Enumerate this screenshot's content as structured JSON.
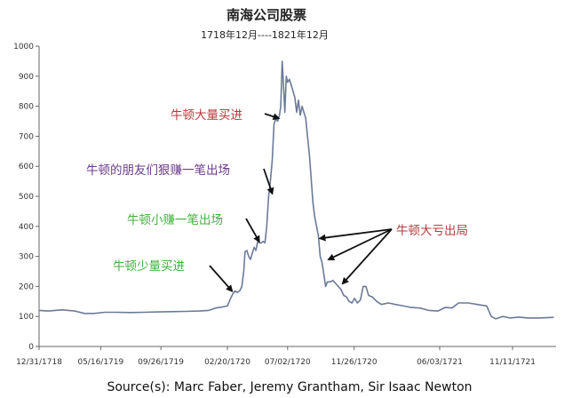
{
  "chart_data": {
    "type": "line",
    "title": "南海公司股票",
    "subtitle": "1718年12月----1821年12月",
    "ylim": [
      0,
      1000
    ],
    "yticks": [
      0,
      100,
      200,
      300,
      400,
      500,
      600,
      700,
      800,
      900,
      1000
    ],
    "xlim": [
      "1718-12-31",
      "1722-02-15"
    ],
    "xticks": [
      {
        "date": "1718-12-31",
        "label": "12/31/1718"
      },
      {
        "date": "1719-05-16",
        "label": "05/16/1719"
      },
      {
        "date": "1719-09-26",
        "label": "09/26/1719"
      },
      {
        "date": "1720-02-20",
        "label": "02/20/1720"
      },
      {
        "date": "1720-07-02",
        "label": "07/02/1720"
      },
      {
        "date": "1720-11-26",
        "label": "11/26/1720"
      },
      {
        "date": "1721-06-03",
        "label": "06/03/1721"
      },
      {
        "date": "1721-11-11",
        "label": "11/11/1721"
      }
    ],
    "grid": false,
    "line_color": "#6b7a99",
    "series": [
      {
        "points": [
          [
            "1718-12-31",
            120
          ],
          [
            "1719-01-20",
            118
          ],
          [
            "1719-02-20",
            122
          ],
          [
            "1719-03-20",
            118
          ],
          [
            "1719-04-10",
            110
          ],
          [
            "1719-05-01",
            110
          ],
          [
            "1719-05-25",
            114
          ],
          [
            "1719-06-20",
            114
          ],
          [
            "1719-07-20",
            113
          ],
          [
            "1719-08-20",
            114
          ],
          [
            "1719-09-20",
            115
          ],
          [
            "1719-10-20",
            116
          ],
          [
            "1719-11-20",
            117
          ],
          [
            "1719-12-20",
            118
          ],
          [
            "1720-01-10",
            120
          ],
          [
            "1720-01-25",
            128
          ],
          [
            "1720-02-10",
            132
          ],
          [
            "1720-02-20",
            135
          ],
          [
            "1720-02-27",
            160
          ],
          [
            "1720-03-03",
            175
          ],
          [
            "1720-03-08",
            185
          ],
          [
            "1720-03-13",
            180
          ],
          [
            "1720-03-18",
            185
          ],
          [
            "1720-03-23",
            200
          ],
          [
            "1720-03-27",
            250
          ],
          [
            "1720-03-30",
            315
          ],
          [
            "1720-04-03",
            320
          ],
          [
            "1720-04-07",
            300
          ],
          [
            "1720-04-11",
            290
          ],
          [
            "1720-04-15",
            310
          ],
          [
            "1720-04-19",
            330
          ],
          [
            "1720-04-23",
            320
          ],
          [
            "1720-04-27",
            350
          ],
          [
            "1720-05-01",
            345
          ],
          [
            "1720-05-05",
            345
          ],
          [
            "1720-05-09",
            350
          ],
          [
            "1720-05-13",
            345
          ],
          [
            "1720-05-17",
            400
          ],
          [
            "1720-05-21",
            500
          ],
          [
            "1720-05-25",
            550
          ],
          [
            "1720-05-29",
            620
          ],
          [
            "1720-06-02",
            740
          ],
          [
            "1720-06-06",
            760
          ],
          [
            "1720-06-10",
            750
          ],
          [
            "1720-06-14",
            770
          ],
          [
            "1720-06-17",
            800
          ],
          [
            "1720-06-20",
            950
          ],
          [
            "1720-06-23",
            870
          ],
          [
            "1720-06-26",
            780
          ],
          [
            "1720-06-29",
            900
          ],
          [
            "1720-07-02",
            880
          ],
          [
            "1720-07-06",
            890
          ],
          [
            "1720-07-10",
            870
          ],
          [
            "1720-07-14",
            850
          ],
          [
            "1720-07-18",
            830
          ],
          [
            "1720-07-22",
            780
          ],
          [
            "1720-07-26",
            820
          ],
          [
            "1720-07-30",
            770
          ],
          [
            "1720-08-03",
            800
          ],
          [
            "1720-08-07",
            780
          ],
          [
            "1720-08-11",
            760
          ],
          [
            "1720-08-15",
            700
          ],
          [
            "1720-08-19",
            640
          ],
          [
            "1720-08-23",
            560
          ],
          [
            "1720-08-27",
            480
          ],
          [
            "1720-08-31",
            430
          ],
          [
            "1720-09-04",
            400
          ],
          [
            "1720-09-08",
            370
          ],
          [
            "1720-09-12",
            300
          ],
          [
            "1720-09-16",
            280
          ],
          [
            "1720-09-20",
            240
          ],
          [
            "1720-09-24",
            200
          ],
          [
            "1720-09-28",
            215
          ],
          [
            "1720-10-04",
            215
          ],
          [
            "1720-10-10",
            220
          ],
          [
            "1720-10-16",
            210
          ],
          [
            "1720-10-22",
            200
          ],
          [
            "1720-10-28",
            190
          ],
          [
            "1720-11-03",
            170
          ],
          [
            "1720-11-09",
            165
          ],
          [
            "1720-11-15",
            150
          ],
          [
            "1720-11-21",
            145
          ],
          [
            "1720-11-27",
            160
          ],
          [
            "1720-12-03",
            145
          ],
          [
            "1720-12-10",
            155
          ],
          [
            "1720-12-16",
            200
          ],
          [
            "1720-12-22",
            200
          ],
          [
            "1720-12-28",
            170
          ],
          [
            "1721-01-05",
            165
          ],
          [
            "1721-01-15",
            150
          ],
          [
            "1721-01-25",
            140
          ],
          [
            "1721-02-10",
            145
          ],
          [
            "1721-02-25",
            140
          ],
          [
            "1721-03-15",
            135
          ],
          [
            "1721-04-01",
            130
          ],
          [
            "1721-04-20",
            128
          ],
          [
            "1721-05-10",
            120
          ],
          [
            "1721-05-30",
            118
          ],
          [
            "1721-06-15",
            130
          ],
          [
            "1721-06-30",
            128
          ],
          [
            "1721-07-15",
            145
          ],
          [
            "1721-08-05",
            145
          ],
          [
            "1721-08-25",
            140
          ],
          [
            "1721-09-15",
            135
          ],
          [
            "1721-09-25",
            100
          ],
          [
            "1721-10-05",
            92
          ],
          [
            "1721-10-20",
            100
          ],
          [
            "1721-11-05",
            95
          ],
          [
            "1721-11-25",
            98
          ],
          [
            "1721-12-15",
            95
          ],
          [
            "1722-01-10",
            95
          ],
          [
            "1722-02-10",
            97
          ]
        ]
      }
    ],
    "annotations": [
      {
        "text": "牛顿大量买进",
        "color": "#b83a3a",
        "arrows": [
          {
            "to": [
              "1720-06-12",
              760
            ]
          }
        ]
      },
      {
        "text": "牛顿的朋友们狠赚一笔出场",
        "color": "#6b3a8a",
        "arrows": [
          {
            "to": [
              "1720-05-29",
              510
            ]
          }
        ]
      },
      {
        "text": "牛顿小赚一笔出场",
        "color": "#3fb33a",
        "arrows": [
          {
            "to": [
              "1720-04-30",
              350
            ]
          }
        ]
      },
      {
        "text": "牛顿少量买进",
        "color": "#3fb33a",
        "arrows": [
          {
            "to": [
              "1720-03-01",
              185
            ]
          }
        ]
      },
      {
        "text": "牛顿大亏出局",
        "color": "#b83a3a",
        "arrows": [
          {
            "to": [
              "1720-09-12",
              360
            ]
          },
          {
            "to": [
              "1720-10-01",
              290
            ]
          },
          {
            "to": [
              "1720-11-01",
              210
            ]
          }
        ]
      }
    ],
    "source": "Source(s): Marc Faber, Jeremy Grantham, Sir Isaac Newton"
  }
}
